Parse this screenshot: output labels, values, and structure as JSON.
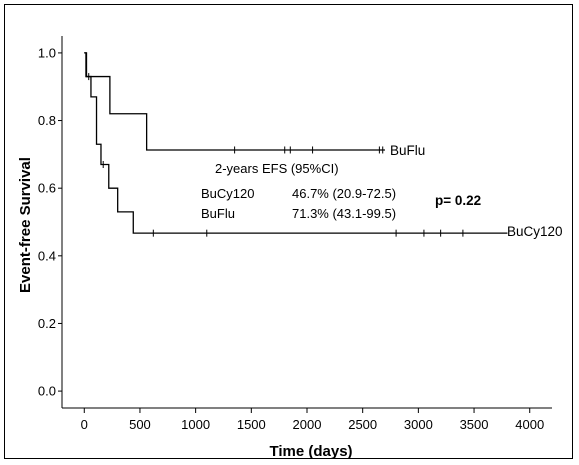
{
  "chart_data": {
    "type": "line",
    "step": true,
    "title": "",
    "xlabel": "Time (days)",
    "ylabel": "Event-free Survival",
    "xlim": [
      -200,
      4200
    ],
    "ylim": [
      -0.05,
      1.05
    ],
    "x_ticks": [
      0,
      500,
      1000,
      1500,
      2000,
      2500,
      3000,
      3500,
      4000
    ],
    "x_tick_labels": [
      "0",
      "500",
      "1000",
      "1500",
      "2000",
      "2500",
      "3000",
      "3500",
      "4000"
    ],
    "y_ticks": [
      0.0,
      0.2,
      0.4,
      0.6,
      0.8,
      1.0
    ],
    "y_tick_labels": [
      "0.0",
      "0.2",
      "0.4",
      "0.6",
      "0.8",
      "1.0"
    ],
    "grid": false,
    "series": [
      {
        "name": "BuFlu",
        "color": "#000000",
        "steps": [
          [
            0,
            1.0
          ],
          [
            20,
            0.93
          ],
          [
            230,
            0.82
          ],
          [
            560,
            0.713
          ],
          [
            2700,
            0.713
          ]
        ],
        "censored": [
          [
            1350,
            0.713
          ],
          [
            1800,
            0.713
          ],
          [
            1850,
            0.713
          ],
          [
            2050,
            0.713
          ],
          [
            2650,
            0.713
          ],
          [
            2680,
            0.713
          ]
        ]
      },
      {
        "name": "BuCy120",
        "color": "#000000",
        "steps": [
          [
            0,
            1.0
          ],
          [
            15,
            0.93
          ],
          [
            60,
            0.87
          ],
          [
            110,
            0.73
          ],
          [
            150,
            0.67
          ],
          [
            220,
            0.6
          ],
          [
            300,
            0.53
          ],
          [
            440,
            0.467
          ],
          [
            3800,
            0.467
          ]
        ],
        "censored": [
          [
            40,
            0.93
          ],
          [
            170,
            0.67
          ],
          [
            620,
            0.467
          ],
          [
            1100,
            0.467
          ],
          [
            2800,
            0.467
          ],
          [
            3050,
            0.467
          ],
          [
            3200,
            0.467
          ],
          [
            3400,
            0.467
          ]
        ]
      }
    ],
    "annotations": {
      "efs_header": "2-years EFS (95%CI)",
      "rows": [
        {
          "name": "BuCy120",
          "value": "46.7% (20.9-72.5)"
        },
        {
          "name": "BuFlu",
          "value": "71.3% (43.1-99.5)"
        }
      ],
      "p_value": "p= 0.22"
    }
  }
}
